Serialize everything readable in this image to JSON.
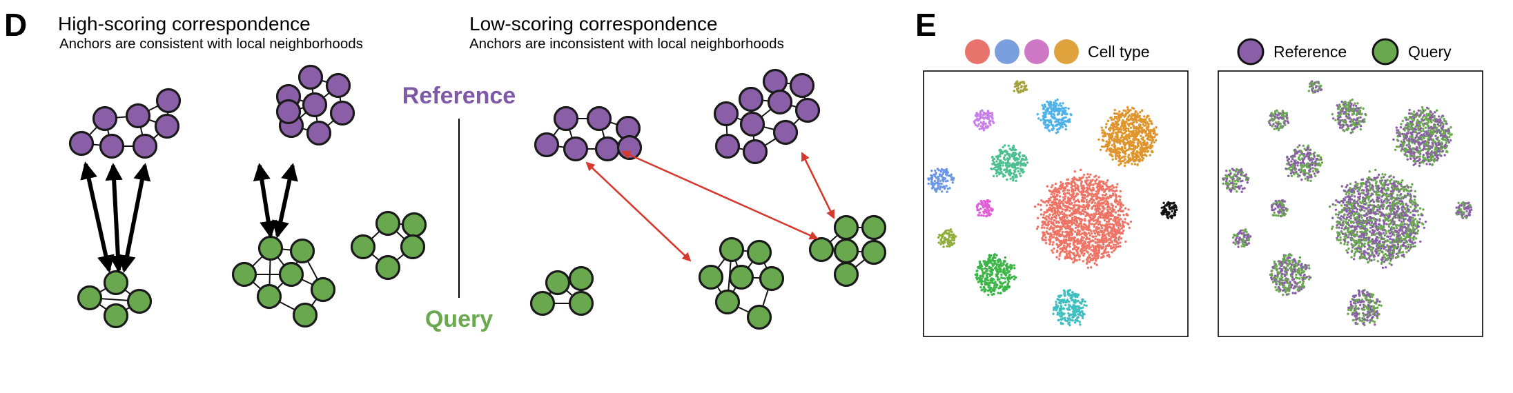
{
  "panel_d": {
    "letter": "D",
    "high": {
      "title": "High-scoring correspondence",
      "subtitle": "Anchors are consistent with local neighborhoods"
    },
    "low": {
      "title": "Low-scoring correspondence",
      "subtitle": "Anchors are inconsistent with local neighborhoods"
    },
    "reference_label": "Reference",
    "query_label": "Query"
  },
  "panel_e": {
    "letter": "E",
    "left_legend": "Cell type",
    "right_legend_reference": "Reference",
    "right_legend_query": "Query"
  },
  "colors": {
    "reference": "#8a5fa8",
    "query": "#6aa84f",
    "reference_label": "#7e5aa6",
    "query_label": "#6aa84f",
    "arrow_low": "#d63a2f",
    "arrow_high": "#000000",
    "legend_celltypes": [
      "#e8726c",
      "#7a9ede",
      "#cf78c6",
      "#e0a23c"
    ]
  }
}
